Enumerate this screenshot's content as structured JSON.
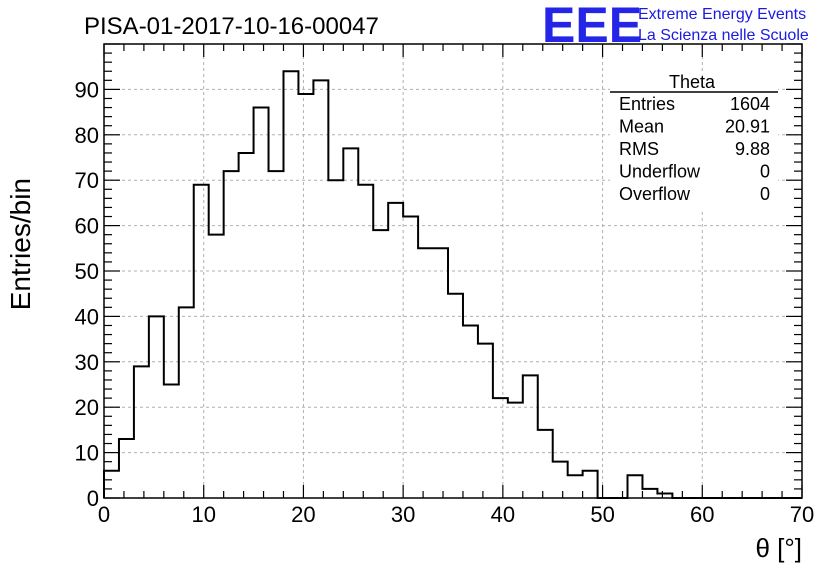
{
  "chart_data": {
    "type": "bar",
    "title": "PISA-01-2017-10-16-00047",
    "xlabel": "θ [°]",
    "ylabel": "Entries/bin",
    "xlim": [
      0,
      70
    ],
    "ylim": [
      0,
      100
    ],
    "xticks": [
      0,
      10,
      20,
      30,
      40,
      50,
      60,
      70
    ],
    "yticks": [
      0,
      10,
      20,
      30,
      40,
      50,
      60,
      70,
      80,
      90
    ],
    "grid": true,
    "bin_width": 1.5,
    "bin_edges_start": 0,
    "values": [
      6,
      13,
      29,
      40,
      25,
      42,
      69,
      58,
      72,
      76,
      86,
      72,
      94,
      89,
      92,
      70,
      77,
      69,
      59,
      65,
      62,
      55,
      55,
      45,
      38,
      34,
      22,
      21,
      27,
      15,
      8,
      5,
      6,
      0,
      0,
      5,
      2,
      1,
      0,
      0,
      0,
      0,
      0,
      0,
      0,
      0,
      0
    ],
    "stats_box": {
      "title": "Theta",
      "rows": [
        {
          "label": "Entries",
          "value": "1604"
        },
        {
          "label": "Mean",
          "value": "20.91"
        },
        {
          "label": "RMS",
          "value": "9.88"
        },
        {
          "label": "Underflow",
          "value": "0"
        },
        {
          "label": "Overflow",
          "value": "0"
        }
      ]
    }
  },
  "logo": {
    "mark": "EEE",
    "line1": "Extreme Energy Events",
    "line2": "La Scienza nelle Scuole",
    "color": "#2525e8"
  }
}
